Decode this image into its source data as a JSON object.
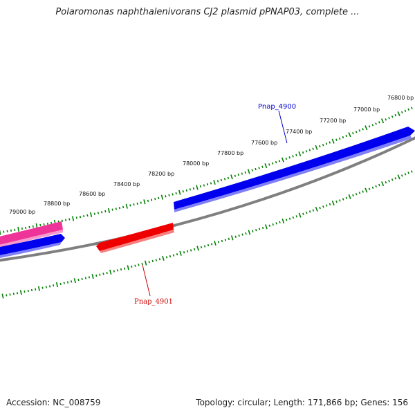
{
  "title": "Polaromonas naphthalenivorans CJ2 plasmid pPNAP03, complete ...",
  "footer": {
    "accession": "Accession: NC_008759",
    "summary": "Topology: circular; Length: 171,866 bp; Genes: 156"
  },
  "scale": {
    "tick_labels": [
      "76800 bp",
      "77000 bp",
      "77200 bp",
      "77400 bp",
      "77600 bp",
      "77800 bp",
      "78000 bp",
      "78200 bp",
      "78400 bp",
      "78600 bp",
      "78800 bp",
      "79000 bp"
    ]
  },
  "genes": [
    {
      "name": "Pnap_4900",
      "strand": "forward",
      "color": "#0000ee"
    },
    {
      "name": "Pnap_4901",
      "strand": "reverse",
      "color": "#ee0000"
    }
  ],
  "unlabeled_features": [
    {
      "strand": "forward",
      "color": "#ee3399"
    },
    {
      "strand": "forward",
      "color": "#0000ee"
    }
  ],
  "colors": {
    "backbone": "#808080",
    "ticks": "#008000",
    "forward_gene": "#0000ee",
    "reverse_gene": "#ee0000",
    "other_feature": "#ee3399"
  }
}
